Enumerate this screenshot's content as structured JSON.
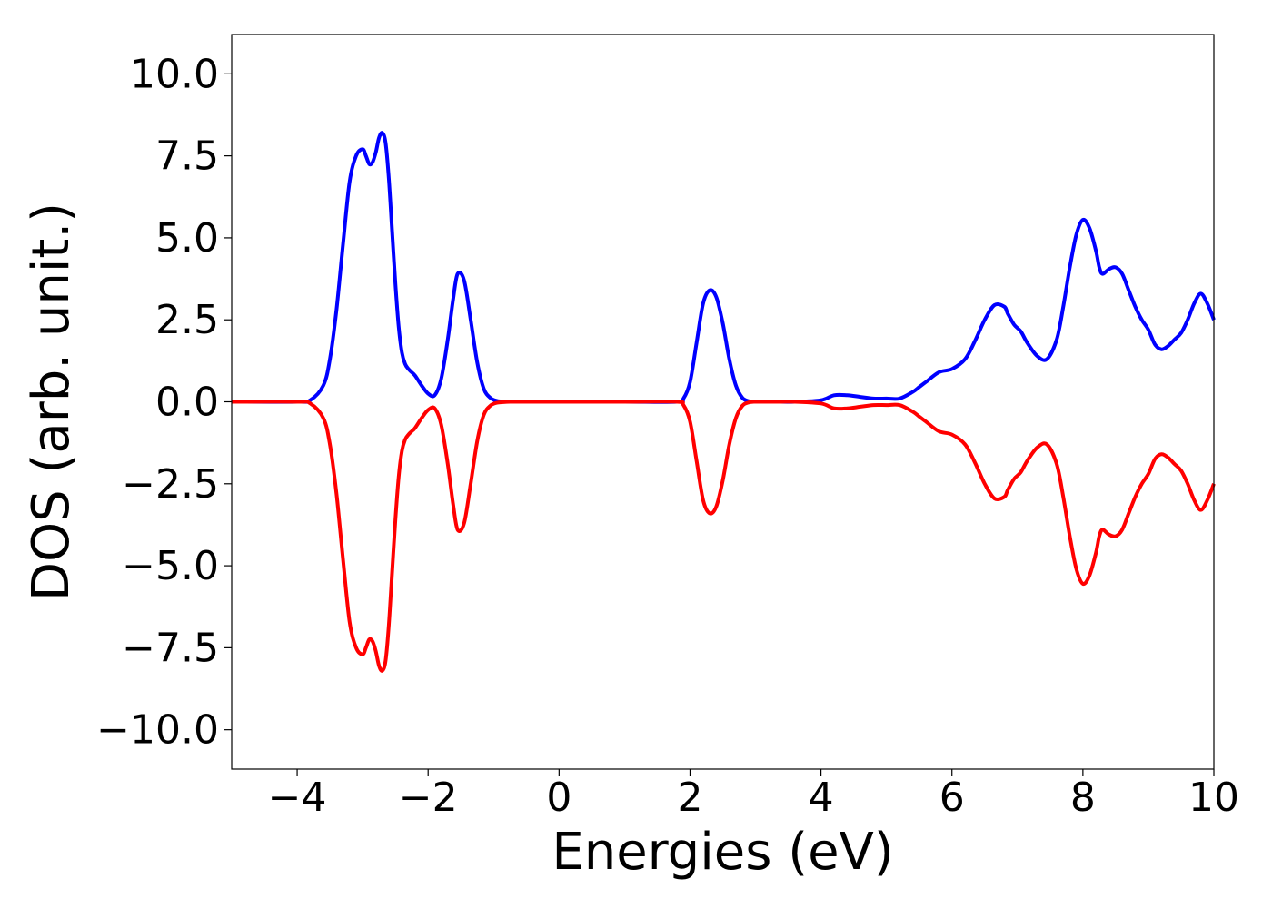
{
  "chart_data": {
    "type": "line",
    "title": "",
    "xlabel": "Energies (eV)",
    "ylabel": "DOS (arb. unit.)",
    "xlim": [
      -5,
      10
    ],
    "ylim": [
      -11.2,
      11.2
    ],
    "x_ticks": [
      -4,
      -2,
      0,
      2,
      4,
      6,
      8,
      10
    ],
    "x_tick_labels": [
      "−4",
      "−2",
      "0",
      "2",
      "4",
      "6",
      "8",
      "10"
    ],
    "y_ticks": [
      -10,
      -7.5,
      -5,
      -2.5,
      0,
      2.5,
      5,
      7.5,
      10
    ],
    "y_tick_labels": [
      "−10.0",
      "−7.5",
      "−5.0",
      "−2.5",
      "0.0",
      "2.5",
      "5.0",
      "7.5",
      "10.0"
    ],
    "grid": false,
    "legend": "none",
    "series": [
      {
        "color": "#0000ff",
        "x": [
          -5.0,
          -4.0,
          -3.8,
          -3.6,
          -3.5,
          -3.4,
          -3.3,
          -3.2,
          -3.1,
          -3.0,
          -2.95,
          -2.9,
          -2.85,
          -2.8,
          -2.75,
          -2.7,
          -2.65,
          -2.6,
          -2.55,
          -2.5,
          -2.45,
          -2.4,
          -2.35,
          -2.3,
          -2.25,
          -2.2,
          -2.1,
          -2.0,
          -1.9,
          -1.8,
          -1.7,
          -1.62,
          -1.55,
          -1.45,
          -1.35,
          -1.25,
          -1.15,
          -1.05,
          -0.95,
          -0.85,
          -0.75,
          -0.65,
          -0.55,
          -0.3,
          0.0,
          1.0,
          1.8,
          1.9,
          2.0,
          2.1,
          2.2,
          2.3,
          2.4,
          2.5,
          2.6,
          2.7,
          2.8,
          2.9,
          3.0,
          3.1,
          3.3,
          3.6,
          4.0,
          4.2,
          4.4,
          4.6,
          4.8,
          5.0,
          5.2,
          5.4,
          5.5,
          5.6,
          5.8,
          6.0,
          6.2,
          6.35,
          6.5,
          6.65,
          6.8,
          6.85,
          6.95,
          7.05,
          7.15,
          7.3,
          7.45,
          7.6,
          7.7,
          7.8,
          7.9,
          8.0,
          8.1,
          8.2,
          8.25,
          8.3,
          8.4,
          8.5,
          8.6,
          8.7,
          8.8,
          8.9,
          9.0,
          9.1,
          9.2,
          9.3,
          9.4,
          9.5,
          9.6,
          9.7,
          9.8,
          9.9,
          10.0
        ],
        "y": [
          0.0,
          0.0,
          0.05,
          0.5,
          1.3,
          2.8,
          4.8,
          6.7,
          7.5,
          7.7,
          7.5,
          7.25,
          7.3,
          7.6,
          8.05,
          8.2,
          7.9,
          6.8,
          5.2,
          3.6,
          2.3,
          1.5,
          1.15,
          1.0,
          0.9,
          0.8,
          0.5,
          0.25,
          0.2,
          0.7,
          1.9,
          3.1,
          3.9,
          3.7,
          2.5,
          1.2,
          0.4,
          0.12,
          0.03,
          0.01,
          0.0,
          0.0,
          0.0,
          0.0,
          0.0,
          0.0,
          0.0,
          0.1,
          0.6,
          1.8,
          3.0,
          3.4,
          3.2,
          2.4,
          1.3,
          0.5,
          0.12,
          0.02,
          0.0,
          0.0,
          0.0,
          0.0,
          0.05,
          0.2,
          0.2,
          0.15,
          0.1,
          0.1,
          0.1,
          0.3,
          0.45,
          0.6,
          0.9,
          1.0,
          1.3,
          1.85,
          2.5,
          2.95,
          2.9,
          2.7,
          2.35,
          2.15,
          1.8,
          1.4,
          1.3,
          1.9,
          2.9,
          4.1,
          5.1,
          5.55,
          5.3,
          4.6,
          4.1,
          3.9,
          4.05,
          4.1,
          3.9,
          3.4,
          2.9,
          2.5,
          2.2,
          1.75,
          1.6,
          1.7,
          1.9,
          2.1,
          2.5,
          3.0,
          3.3,
          3.0,
          2.5
        ]
      },
      {
        "color": "#ff0000",
        "x": [
          -5.0,
          -4.0,
          -3.8,
          -3.6,
          -3.5,
          -3.4,
          -3.3,
          -3.2,
          -3.1,
          -3.0,
          -2.95,
          -2.9,
          -2.85,
          -2.8,
          -2.75,
          -2.7,
          -2.65,
          -2.6,
          -2.55,
          -2.5,
          -2.45,
          -2.4,
          -2.35,
          -2.3,
          -2.25,
          -2.2,
          -2.1,
          -2.0,
          -1.9,
          -1.8,
          -1.7,
          -1.62,
          -1.55,
          -1.45,
          -1.35,
          -1.25,
          -1.15,
          -1.05,
          -0.95,
          -0.85,
          -0.75,
          -0.65,
          -0.55,
          -0.3,
          0.0,
          1.0,
          1.8,
          1.9,
          2.0,
          2.1,
          2.2,
          2.3,
          2.4,
          2.5,
          2.6,
          2.7,
          2.8,
          2.9,
          3.0,
          3.1,
          3.3,
          3.6,
          4.0,
          4.2,
          4.4,
          4.6,
          4.8,
          5.0,
          5.2,
          5.4,
          5.5,
          5.6,
          5.8,
          6.0,
          6.2,
          6.35,
          6.5,
          6.65,
          6.8,
          6.85,
          6.95,
          7.05,
          7.15,
          7.3,
          7.45,
          7.6,
          7.7,
          7.8,
          7.9,
          8.0,
          8.1,
          8.2,
          8.25,
          8.3,
          8.4,
          8.5,
          8.6,
          8.7,
          8.8,
          8.9,
          9.0,
          9.1,
          9.2,
          9.3,
          9.4,
          9.5,
          9.6,
          9.7,
          9.8,
          9.9,
          10.0
        ],
        "y": [
          0.0,
          0.0,
          -0.05,
          -0.5,
          -1.3,
          -2.8,
          -4.8,
          -6.7,
          -7.5,
          -7.7,
          -7.5,
          -7.25,
          -7.3,
          -7.6,
          -8.05,
          -8.2,
          -7.9,
          -6.8,
          -5.2,
          -3.6,
          -2.3,
          -1.5,
          -1.15,
          -1.0,
          -0.9,
          -0.8,
          -0.5,
          -0.25,
          -0.2,
          -0.7,
          -1.9,
          -3.1,
          -3.9,
          -3.7,
          -2.5,
          -1.2,
          -0.4,
          -0.12,
          -0.03,
          -0.01,
          0.0,
          0.0,
          0.0,
          0.0,
          0.0,
          0.0,
          0.0,
          -0.1,
          -0.6,
          -1.8,
          -3.0,
          -3.4,
          -3.2,
          -2.4,
          -1.3,
          -0.5,
          -0.12,
          -0.02,
          0.0,
          0.0,
          0.0,
          0.0,
          -0.05,
          -0.2,
          -0.2,
          -0.15,
          -0.1,
          -0.1,
          -0.1,
          -0.3,
          -0.45,
          -0.6,
          -0.9,
          -1.0,
          -1.3,
          -1.85,
          -2.5,
          -2.95,
          -2.9,
          -2.7,
          -2.35,
          -2.15,
          -1.8,
          -1.4,
          -1.3,
          -1.9,
          -2.9,
          -4.1,
          -5.1,
          -5.55,
          -5.3,
          -4.6,
          -4.1,
          -3.9,
          -4.05,
          -4.1,
          -3.9,
          -3.4,
          -2.9,
          -2.5,
          -2.2,
          -1.75,
          -1.6,
          -1.7,
          -1.9,
          -2.1,
          -2.5,
          -3.0,
          -3.3,
          -3.0,
          -2.5
        ]
      }
    ]
  }
}
